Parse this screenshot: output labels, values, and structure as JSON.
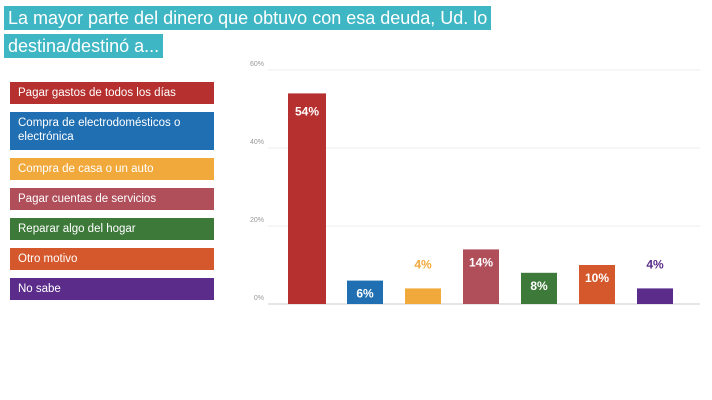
{
  "title": {
    "line1": "La mayor parte del dinero que obtuvo con esa deuda, Ud. lo",
    "line2": "destina/destinó a..."
  },
  "chart_data": {
    "type": "bar",
    "title": "La mayor parte del dinero que obtuvo con esa deuda, Ud. lo destina/destinó a...",
    "categories": [
      "Pagar gastos de todos los días",
      "Compra de electrodomésticos o electrónica",
      "Compra de casa o un auto",
      "Pagar cuentas de servicios",
      "Reparar algo del hogar",
      "Otro motivo",
      "No sabe"
    ],
    "values": [
      54,
      6,
      4,
      14,
      8,
      10,
      4
    ],
    "data_labels": [
      "54%",
      "6%",
      "4%",
      "14%",
      "8%",
      "10%",
      "4%"
    ],
    "colors": [
      "#b5302e",
      "#1f6fb2",
      "#f2a93b",
      "#b04e5a",
      "#3d7a3a",
      "#d4582b",
      "#5b2c8a"
    ],
    "label_colors": [
      "#ffffff",
      "#ffffff",
      "#f2a93b",
      "#ffffff",
      "#ffffff",
      "#ffffff",
      "#5b2c8a"
    ],
    "label_inside": [
      true,
      true,
      false,
      true,
      true,
      true,
      false
    ],
    "yticks": [
      "0%",
      "20%",
      "40%",
      "60%"
    ],
    "ylim": [
      0,
      60
    ],
    "grid": true,
    "legend_position": "left",
    "xlabel": "",
    "ylabel": ""
  }
}
